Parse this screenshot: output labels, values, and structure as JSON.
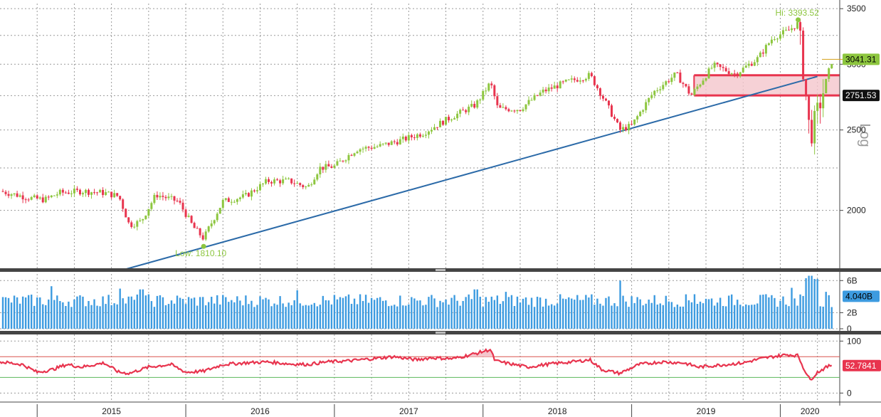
{
  "chart_data": [
    {
      "type": "candlestick",
      "panel": "price",
      "scale": "log",
      "scale_label": "Log",
      "ylim": [
        1700,
        3550
      ],
      "yticks": [
        2000,
        2500,
        3000,
        3500
      ],
      "ytick_labels": [
        "2000",
        "2500",
        "3000",
        "3500"
      ],
      "xlim": [
        2014.75,
        2020.4
      ],
      "xtick_years": [
        2015,
        2016,
        2017,
        2018,
        2019,
        2020
      ],
      "xtick_labels": [
        "2015",
        "2016",
        "2017",
        "2018",
        "2019",
        "2020"
      ],
      "grid": true,
      "series_trend": [
        [
          2014.75,
          2110
        ],
        [
          2014.95,
          2070
        ],
        [
          2015.05,
          2060
        ],
        [
          2015.15,
          2100
        ],
        [
          2015.3,
          2110
        ],
        [
          2015.45,
          2100
        ],
        [
          2015.55,
          2080
        ],
        [
          2015.62,
          1920
        ],
        [
          2015.7,
          1940
        ],
        [
          2015.8,
          2090
        ],
        [
          2015.95,
          2050
        ],
        [
          2016.05,
          1910
        ],
        [
          2016.12,
          1850
        ],
        [
          2016.25,
          2050
        ],
        [
          2016.4,
          2080
        ],
        [
          2016.55,
          2170
        ],
        [
          2016.7,
          2170
        ],
        [
          2016.82,
          2130
        ],
        [
          2016.9,
          2250
        ],
        [
          2017.0,
          2260
        ],
        [
          2017.15,
          2370
        ],
        [
          2017.3,
          2390
        ],
        [
          2017.45,
          2430
        ],
        [
          2017.6,
          2480
        ],
        [
          2017.75,
          2570
        ],
        [
          2017.95,
          2680
        ],
        [
          2018.05,
          2850
        ],
        [
          2018.1,
          2650
        ],
        [
          2018.25,
          2650
        ],
        [
          2018.4,
          2780
        ],
        [
          2018.55,
          2850
        ],
        [
          2018.72,
          2910
        ],
        [
          2018.8,
          2750
        ],
        [
          2018.92,
          2500
        ],
        [
          2019.0,
          2530
        ],
        [
          2019.15,
          2780
        ],
        [
          2019.3,
          2920
        ],
        [
          2019.4,
          2750
        ],
        [
          2019.55,
          2990
        ],
        [
          2019.7,
          2920
        ],
        [
          2019.85,
          3050
        ],
        [
          2019.95,
          3230
        ],
        [
          2020.05,
          3290
        ],
        [
          2020.12,
          3360
        ],
        [
          2020.15,
          3010
        ],
        [
          2020.2,
          2450
        ],
        [
          2020.24,
          2580
        ],
        [
          2020.3,
          2830
        ],
        [
          2020.35,
          3040
        ]
      ],
      "last_value": 3041.31,
      "last_label": "3041.31",
      "level": 2751.53,
      "level_label": "2751.53",
      "zone": {
        "from_year": 2019.42,
        "to_year": 2020.4,
        "low": 2751.53,
        "high": 2910
      },
      "high": {
        "year": 2020.12,
        "value": 3393.52,
        "label": "Hi: 3393.52"
      },
      "low": {
        "year": 2016.12,
        "value": 1810.1,
        "label": "Low: 1810.10"
      },
      "trendline": {
        "x": [
          2015.6,
          2020.25
        ],
        "y": [
          1700,
          2900
        ]
      }
    },
    {
      "type": "bar",
      "panel": "volume",
      "ylim": [
        0,
        7
      ],
      "yticks": [
        0,
        2,
        6
      ],
      "ytick_labels": [
        "0",
        "2B",
        "6B"
      ],
      "last_value": 4.04,
      "last_label": "4.040B",
      "typical": 3.6,
      "spikes": [
        {
          "year": 2015.1,
          "value": 5.3
        },
        {
          "year": 2015.55,
          "value": 5.0
        },
        {
          "year": 2015.7,
          "value": 4.9
        },
        {
          "year": 2016.75,
          "value": 4.8
        },
        {
          "year": 2017.95,
          "value": 4.9
        },
        {
          "year": 2018.15,
          "value": 4.6
        },
        {
          "year": 2018.92,
          "value": 6.0
        },
        {
          "year": 2019.42,
          "value": 4.3
        },
        {
          "year": 2020.08,
          "value": 5.1
        },
        {
          "year": 2020.18,
          "value": 6.3
        },
        {
          "year": 2020.2,
          "value": 6.6
        },
        {
          "year": 2020.24,
          "value": 6.2
        },
        {
          "year": 2020.3,
          "value": 4.6
        }
      ]
    },
    {
      "type": "line",
      "panel": "oscillator",
      "ylim": [
        -5,
        110
      ],
      "yticks": [
        0,
        100
      ],
      "ytick_labels": [
        "0",
        "100"
      ],
      "overbought": 70,
      "oversold": 30,
      "last_value": 52.7841,
      "last_label": "52.7841",
      "x": [
        2014.75,
        2014.9,
        2015.0,
        2015.1,
        2015.2,
        2015.3,
        2015.45,
        2015.55,
        2015.62,
        2015.75,
        2015.9,
        2016.0,
        2016.12,
        2016.25,
        2016.4,
        2016.55,
        2016.7,
        2016.82,
        2016.95,
        2017.1,
        2017.25,
        2017.4,
        2017.55,
        2017.65,
        2017.8,
        2017.95,
        2018.05,
        2018.08,
        2018.15,
        2018.3,
        2018.45,
        2018.6,
        2018.72,
        2018.8,
        2018.92,
        2019.05,
        2019.2,
        2019.35,
        2019.45,
        2019.6,
        2019.75,
        2019.85,
        2019.95,
        2020.05,
        2020.12,
        2020.15,
        2020.2,
        2020.25,
        2020.3,
        2020.35
      ],
      "y": [
        60,
        55,
        40,
        45,
        55,
        50,
        58,
        40,
        38,
        50,
        55,
        40,
        42,
        55,
        58,
        60,
        56,
        55,
        60,
        62,
        66,
        70,
        64,
        68,
        66,
        76,
        84,
        62,
        58,
        50,
        56,
        60,
        64,
        45,
        38,
        55,
        60,
        58,
        50,
        54,
        58,
        65,
        70,
        74,
        72,
        52,
        25,
        40,
        48,
        55
      ]
    }
  ]
}
